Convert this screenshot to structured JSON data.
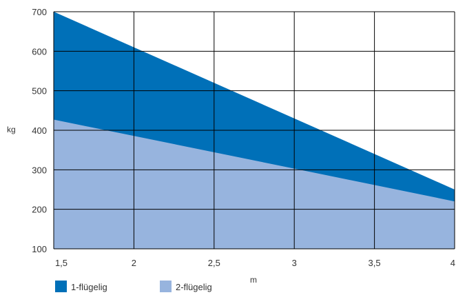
{
  "chart_data": {
    "type": "area",
    "x": [
      1.5,
      2,
      2.5,
      3,
      3.5,
      4
    ],
    "x_tick_labels": [
      "1,5",
      "2",
      "2,5",
      "3",
      "3,5",
      "4"
    ],
    "y_ticks": [
      100,
      200,
      300,
      400,
      500,
      600,
      700
    ],
    "y_tick_labels": [
      "100",
      "200",
      "300",
      "400",
      "500",
      "600",
      "700"
    ],
    "xlabel": "m",
    "ylabel": "kg",
    "xlim": [
      1.5,
      4
    ],
    "ylim": [
      100,
      700
    ],
    "grid": true,
    "legend_position": "bottom-left",
    "series": [
      {
        "name": "1-flügelig",
        "color": "#0070b8",
        "x": [
          1.5,
          4
        ],
        "values": [
          700,
          250
        ]
      },
      {
        "name": "2-flügelig",
        "color": "#97b4de",
        "x": [
          1.5,
          3,
          4
        ],
        "values": [
          427,
          303,
          220
        ]
      }
    ]
  }
}
